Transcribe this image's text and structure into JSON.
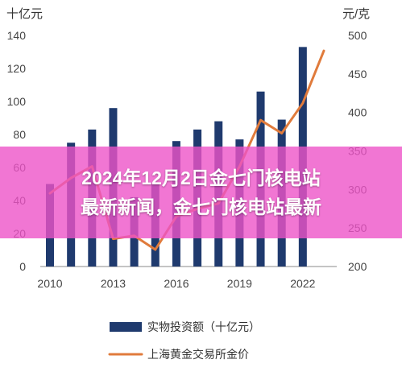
{
  "chart_data": {
    "type": "bar+line",
    "left_axis_unit": "十亿元",
    "right_axis_unit": "元/克",
    "left_ticks": [
      0,
      20,
      40,
      60,
      80,
      100,
      120,
      140
    ],
    "right_ticks": [
      200,
      250,
      300,
      350,
      400,
      450,
      500
    ],
    "left_ylim": [
      0,
      140
    ],
    "right_ylim": [
      200,
      500
    ],
    "x_ticks": [
      "2010",
      "2013",
      "2016",
      "2019",
      "2022"
    ],
    "years": [
      2010,
      2011,
      2012,
      2013,
      2014,
      2015,
      2016,
      2017,
      2018,
      2019,
      2020,
      2021,
      2022,
      2023
    ],
    "series": [
      {
        "name": "实物投资额（十亿元）",
        "type": "bar",
        "axis": "left",
        "color": "#1f3a6e",
        "values": [
          50,
          75,
          83,
          96,
          42,
          50,
          76,
          83,
          88,
          77,
          106,
          89,
          133,
          0
        ]
      },
      {
        "name": "上海黄金交易所金价",
        "type": "line",
        "axis": "right",
        "color": "#e07b3c",
        "values": [
          295,
          315,
          330,
          236,
          240,
          222,
          265,
          275,
          282,
          330,
          390,
          373,
          412,
          480
        ]
      }
    ]
  },
  "banner": {
    "line1": "2024年12月2日金七门核电站",
    "line2": "最新新闻，金七门核电站最新"
  },
  "colors": {
    "bar": "#1f3a6e",
    "line": "#e07b3c",
    "banner": "#ee54c8"
  }
}
